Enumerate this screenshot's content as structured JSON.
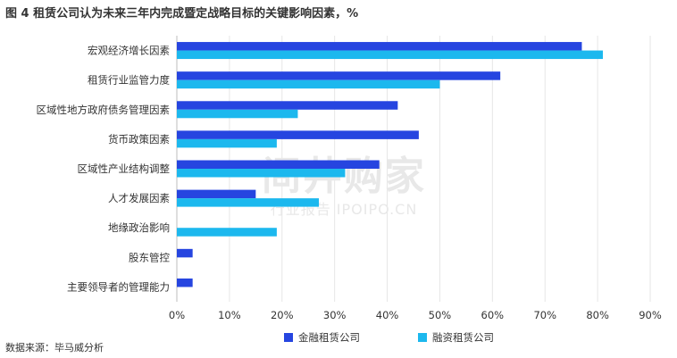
{
  "title": "图 4 租赁公司认为未来三年内完成暨定战略目标的关键影响因素，%",
  "source": "数据来源：毕马威分析",
  "watermark": {
    "main": "间井购家",
    "sub": "行业报告 IPOIPO.CN"
  },
  "chart_data": {
    "type": "bar",
    "orientation": "horizontal",
    "title": "图 4 租赁公司认为未来三年内完成暨定战略目标的关键影响因素，%",
    "categories": [
      "宏观经济增长因素",
      "租赁行业监管力度",
      "区域性地方政府债务管理因素",
      "货币政策因素",
      "区域性产业结构调整",
      "人才发展因素",
      "地缘政治影响",
      "股东管控",
      "主要领导者的管理能力"
    ],
    "series": [
      {
        "name": "金融租赁公司",
        "color": "#2645e0",
        "values": [
          77,
          61.5,
          42,
          46,
          38.5,
          15,
          0,
          3,
          3
        ]
      },
      {
        "name": "融资租赁公司",
        "color": "#1cb8ee",
        "values": [
          81,
          50,
          23,
          19,
          32,
          27,
          19,
          0,
          0
        ]
      }
    ],
    "xlim": [
      0,
      90
    ],
    "ticks": [
      0,
      10,
      20,
      30,
      40,
      50,
      60,
      70,
      80,
      90
    ],
    "tick_labels": [
      "0%",
      "10%",
      "20%",
      "30%",
      "40%",
      "50%",
      "60%",
      "70%",
      "80%",
      "90%"
    ],
    "grid": true,
    "legend": "bottom"
  }
}
